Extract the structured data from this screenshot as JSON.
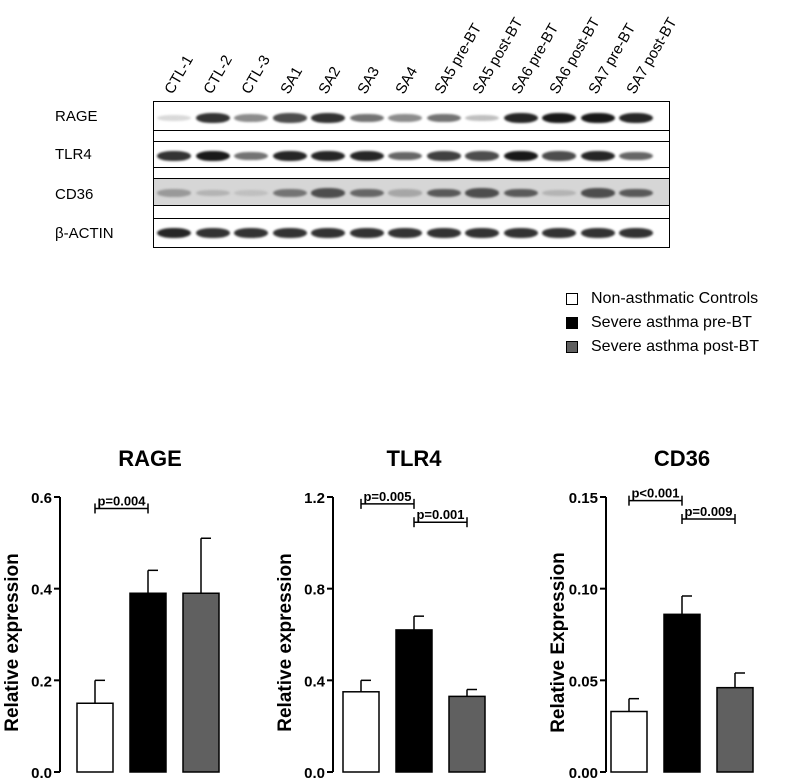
{
  "blot": {
    "lanes": [
      "CTL-1",
      "CTL-2",
      "CTL-3",
      "SA1",
      "SA2",
      "SA3",
      "SA4",
      "SA5 pre-BT",
      "SA5 post-BT",
      "SA6 pre-BT",
      "SA6 post-BT",
      "SA7 pre-BT",
      "SA7 post-BT"
    ],
    "rows": [
      "RAGE",
      "TLR4",
      "CD36",
      "β-ACTIN"
    ],
    "band_intensity": [
      [
        0.15,
        0.8,
        0.45,
        0.7,
        0.8,
        0.55,
        0.45,
        0.55,
        0.25,
        0.85,
        0.9,
        0.9,
        0.85
      ],
      [
        0.8,
        0.9,
        0.55,
        0.85,
        0.85,
        0.85,
        0.6,
        0.75,
        0.7,
        0.9,
        0.7,
        0.85,
        0.6
      ],
      [
        0.4,
        0.3,
        0.25,
        0.55,
        0.7,
        0.6,
        0.35,
        0.65,
        0.7,
        0.65,
        0.3,
        0.7,
        0.65
      ],
      [
        0.85,
        0.8,
        0.8,
        0.8,
        0.8,
        0.8,
        0.8,
        0.8,
        0.8,
        0.8,
        0.8,
        0.8,
        0.8
      ]
    ]
  },
  "legend": [
    {
      "label": "Non-asthmatic Controls",
      "color": "#ffffff"
    },
    {
      "label": "Severe asthma pre-BT",
      "color": "#000000"
    },
    {
      "label": "Severe asthma post-BT",
      "color": "#606060"
    }
  ],
  "chart_data": [
    {
      "type": "bar",
      "title": "RAGE",
      "ylabel": "Relative expression",
      "categories": [
        "Non-asthmatic Controls",
        "Severe asthma pre-BT",
        "Severe asthma post-BT"
      ],
      "values": [
        0.15,
        0.39,
        0.39
      ],
      "errors": [
        0.05,
        0.05,
        0.12
      ],
      "colors": [
        "#ffffff",
        "#000000",
        "#606060"
      ],
      "ylim": [
        0,
        0.6
      ],
      "yticks": [
        0.0,
        0.2,
        0.4,
        0.6
      ],
      "yticklabels": [
        "0.0",
        "0.2",
        "0.4",
        "0.6"
      ],
      "brackets": [
        {
          "from": 0,
          "to": 1,
          "label": "p=0.004",
          "y": 0.575
        }
      ]
    },
    {
      "type": "bar",
      "title": "TLR4",
      "ylabel": "Relative expression",
      "categories": [
        "Non-asthmatic Controls",
        "Severe asthma pre-BT",
        "Severe asthma post-BT"
      ],
      "values": [
        0.35,
        0.62,
        0.33
      ],
      "errors": [
        0.05,
        0.06,
        0.03
      ],
      "colors": [
        "#ffffff",
        "#000000",
        "#606060"
      ],
      "ylim": [
        0,
        1.2
      ],
      "yticks": [
        0.0,
        0.4,
        0.8,
        1.2
      ],
      "yticklabels": [
        "0.0",
        "0.4",
        "0.8",
        "1.2"
      ],
      "brackets": [
        {
          "from": 0,
          "to": 1,
          "label": "p=0.005",
          "y": 1.17
        },
        {
          "from": 1,
          "to": 2,
          "label": "p=0.001",
          "y": 1.09
        }
      ]
    },
    {
      "type": "bar",
      "title": "CD36",
      "ylabel": "Relative Expression",
      "categories": [
        "Non-asthmatic Controls",
        "Severe asthma pre-BT",
        "Severe asthma post-BT"
      ],
      "values": [
        0.033,
        0.086,
        0.046
      ],
      "errors": [
        0.007,
        0.01,
        0.008
      ],
      "colors": [
        "#ffffff",
        "#000000",
        "#606060"
      ],
      "ylim": [
        0,
        0.15
      ],
      "yticks": [
        0.0,
        0.05,
        0.1,
        0.15
      ],
      "yticklabels": [
        "0.00",
        "0.05",
        "0.10",
        "0.15"
      ],
      "brackets": [
        {
          "from": 0,
          "to": 1,
          "label": "p<0.001",
          "y": 0.148
        },
        {
          "from": 1,
          "to": 2,
          "label": "p=0.009",
          "y": 0.138
        }
      ]
    }
  ]
}
